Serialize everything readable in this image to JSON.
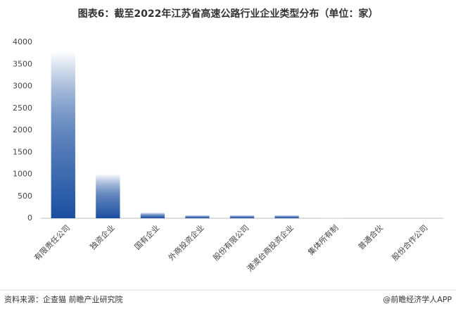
{
  "chart_data": {
    "type": "bar",
    "title": "图表6：截至2022年江苏省高速公路行业企业类型分布（单位：家）",
    "categories": [
      "有限责任公司",
      "独资企业",
      "国有企业",
      "外商投资企业",
      "股份有限公司",
      "港澳台商投资企业",
      "集体所有制",
      "普通合伙",
      "股份合作公司"
    ],
    "values": [
      3790,
      1010,
      130,
      70,
      70,
      70,
      3,
      1,
      1
    ],
    "color": "#1a4fa0",
    "ylim": [
      0,
      4000
    ],
    "yticks": [
      0,
      500,
      1000,
      1500,
      2000,
      2500,
      3000,
      3500,
      4000
    ],
    "grid": false
  },
  "footer": {
    "source": "资料来源：企查猫 前瞻产业研究院",
    "brand": "@前瞻经济学人APP"
  }
}
